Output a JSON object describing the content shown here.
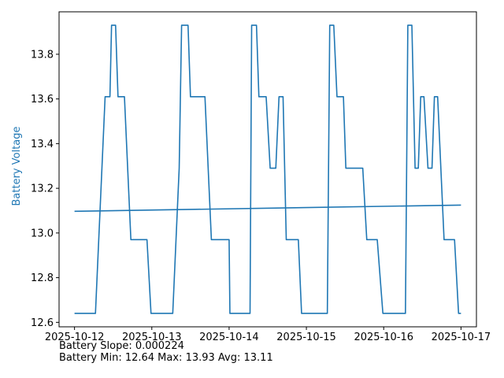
{
  "chart_data": {
    "type": "line",
    "title": "",
    "xlabel": "",
    "ylabel": "Battery Voltage",
    "ylabel_color": "#1f77b4",
    "series_color": "#1f77b4",
    "xlim": [
      "2025-10-11T19:12",
      "2025-10-17T04:48"
    ],
    "ylim": [
      12.58,
      13.99
    ],
    "x_ticks": [
      "2025-10-12",
      "2025-10-13",
      "2025-10-14",
      "2025-10-15",
      "2025-10-16",
      "2025-10-17"
    ],
    "y_ticks": [
      12.6,
      12.8,
      13.0,
      13.2,
      13.4,
      13.6,
      13.8
    ],
    "grid": false,
    "series": [
      {
        "points": [
          [
            "2025-10-12T00:00",
            12.64
          ],
          [
            "2025-10-12T06:30",
            12.64
          ],
          [
            "2025-10-12T09:30",
            13.61
          ],
          [
            "2025-10-12T11:00",
            13.61
          ],
          [
            "2025-10-12T11:30",
            13.93
          ],
          [
            "2025-10-12T12:45",
            13.93
          ],
          [
            "2025-10-12T13:30",
            13.61
          ],
          [
            "2025-10-12T15:30",
            13.61
          ],
          [
            "2025-10-12T17:30",
            12.97
          ],
          [
            "2025-10-12T22:30",
            12.97
          ],
          [
            "2025-10-12T23:45",
            12.64
          ],
          [
            "2025-10-13T06:30",
            12.64
          ],
          [
            "2025-10-13T08:30",
            13.29
          ],
          [
            "2025-10-13T09:15",
            13.93
          ],
          [
            "2025-10-13T11:15",
            13.93
          ],
          [
            "2025-10-13T12:00",
            13.61
          ],
          [
            "2025-10-13T16:30",
            13.61
          ],
          [
            "2025-10-13T18:30",
            12.97
          ],
          [
            "2025-10-14T00:00",
            12.97
          ],
          [
            "2025-10-14T00:15",
            12.64
          ],
          [
            "2025-10-14T06:30",
            12.64
          ],
          [
            "2025-10-14T07:00",
            13.93
          ],
          [
            "2025-10-14T08:30",
            13.93
          ],
          [
            "2025-10-14T09:15",
            13.61
          ],
          [
            "2025-10-14T11:30",
            13.61
          ],
          [
            "2025-10-14T12:45",
            13.29
          ],
          [
            "2025-10-14T14:30",
            13.29
          ],
          [
            "2025-10-14T15:30",
            13.61
          ],
          [
            "2025-10-14T16:45",
            13.61
          ],
          [
            "2025-10-14T17:45",
            12.97
          ],
          [
            "2025-10-14T21:30",
            12.97
          ],
          [
            "2025-10-14T22:30",
            12.64
          ],
          [
            "2025-10-15T06:30",
            12.64
          ],
          [
            "2025-10-15T07:15",
            13.93
          ],
          [
            "2025-10-15T08:30",
            13.93
          ],
          [
            "2025-10-15T09:30",
            13.61
          ],
          [
            "2025-10-15T11:30",
            13.61
          ],
          [
            "2025-10-15T12:15",
            13.29
          ],
          [
            "2025-10-15T17:30",
            13.29
          ],
          [
            "2025-10-15T18:45",
            12.97
          ],
          [
            "2025-10-15T22:00",
            12.97
          ],
          [
            "2025-10-15T23:45",
            12.64
          ],
          [
            "2025-10-16T06:45",
            12.64
          ],
          [
            "2025-10-16T07:30",
            13.93
          ],
          [
            "2025-10-16T08:45",
            13.93
          ],
          [
            "2025-10-16T09:45",
            13.29
          ],
          [
            "2025-10-16T10:45",
            13.29
          ],
          [
            "2025-10-16T11:30",
            13.61
          ],
          [
            "2025-10-16T12:30",
            13.61
          ],
          [
            "2025-10-16T13:45",
            13.29
          ],
          [
            "2025-10-16T15:00",
            13.29
          ],
          [
            "2025-10-16T15:45",
            13.61
          ],
          [
            "2025-10-16T16:45",
            13.61
          ],
          [
            "2025-10-16T18:45",
            12.97
          ],
          [
            "2025-10-16T22:00",
            12.97
          ],
          [
            "2025-10-16T23:15",
            12.64
          ],
          [
            "2025-10-17T00:00",
            12.64
          ]
        ]
      },
      {
        "points": [
          [
            "2025-10-12T00:00",
            13.097
          ],
          [
            "2025-10-17T00:00",
            13.125
          ]
        ]
      }
    ]
  },
  "stats": {
    "slope_line": "Battery Slope: 0.000224",
    "minmax_line": "Battery Min: 12.64 Max: 13.93 Avg: 13.11"
  }
}
